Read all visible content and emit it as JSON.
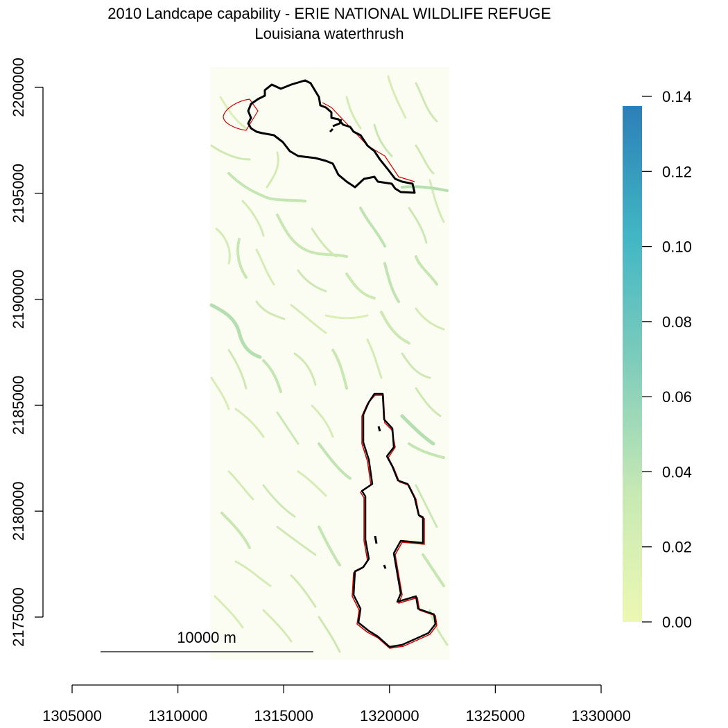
{
  "map": {
    "title": "2010 Landcape capability - ERIE NATIONAL WILDLIFE REFUGE",
    "subtitle": "Louisiana waterthrush",
    "x_axis": {
      "ticks": [
        1305000,
        1310000,
        1315000,
        1320000,
        1325000,
        1330000
      ],
      "tick_labels": [
        "1305000",
        "1310000",
        "1315000",
        "1320000",
        "1325000",
        "1330000"
      ]
    },
    "y_axis": {
      "ticks": [
        2175000,
        2180000,
        2185000,
        2190000,
        2195000,
        2200000
      ],
      "tick_labels": [
        "2175000",
        "2180000",
        "2185000",
        "2190000",
        "2195000",
        "2200000"
      ]
    },
    "legend": {
      "min": 0.0,
      "max": 0.14,
      "ticks": [
        0.0,
        0.02,
        0.04,
        0.06,
        0.08,
        0.1,
        0.12,
        0.14
      ],
      "tick_labels": [
        "0.00",
        "0.02",
        "0.04",
        "0.06",
        "0.08",
        "0.10",
        "0.12",
        "0.14"
      ],
      "colors": [
        "#edf8b1",
        "#c7e9b4",
        "#7fcdbb",
        "#41b6c4",
        "#2c7fb8"
      ]
    },
    "scale_bar": {
      "label": "10000 m",
      "length_m": 10000
    },
    "colors": {
      "refuge_boundary": "#000000",
      "refuge_boundary_outline": "#cc0000",
      "stream_low": "#e3f2b8",
      "stream_mid": "#b9e1b0"
    }
  }
}
